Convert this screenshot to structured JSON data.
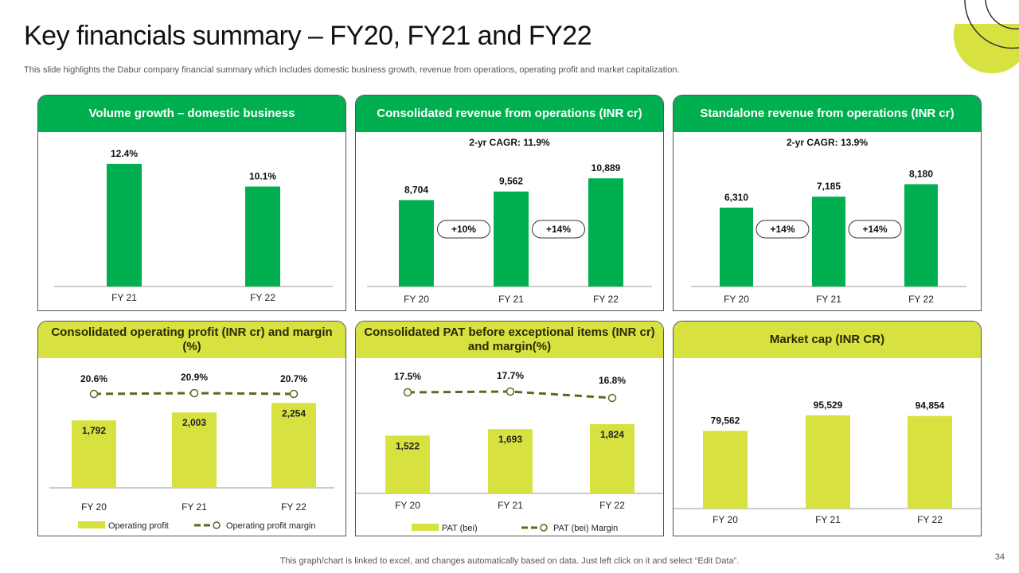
{
  "slide": {
    "title": "Key financials summary – FY20, FY21 and FY22",
    "subtitle": "This slide highlights the Dabur company financial summary which includes domestic business growth, revenue from operations, operating profit and market capitalization.",
    "footer": "This graph/chart is linked to excel,  and changes automatically based on data. Just left click on it and select “Edit Data”.",
    "page_number": "34"
  },
  "colors": {
    "green": "#00b050",
    "lime": "#d7e241",
    "olive": "#5a6b1f"
  },
  "chart_data": [
    {
      "type": "bar",
      "title": "Volume growth – domestic business",
      "categories": [
        "FY 21",
        "FY 22"
      ],
      "values": [
        12.4,
        10.1
      ],
      "value_labels": [
        "12.4%",
        "10.1%"
      ],
      "ylim": [
        0,
        14
      ],
      "color": "#00b050"
    },
    {
      "type": "bar",
      "title": "Consolidated revenue from operations (INR cr)",
      "subtitle": "2-yr CAGR: 11.9%",
      "categories": [
        "FY 20",
        "FY 21",
        "FY 22"
      ],
      "values": [
        8704,
        9562,
        10889
      ],
      "value_labels": [
        "8,704",
        "9,562",
        "10,889"
      ],
      "growth_labels": [
        "+10%",
        "+14%"
      ],
      "ylim": [
        0,
        12500
      ],
      "color": "#00b050"
    },
    {
      "type": "bar",
      "title": "Standalone revenue from operations (INR cr)",
      "subtitle": "2-yr CAGR: 13.9%",
      "categories": [
        "FY 20",
        "FY 21",
        "FY 22"
      ],
      "values": [
        6310,
        7185,
        8180
      ],
      "value_labels": [
        "6,310",
        "7,185",
        "8,180"
      ],
      "growth_labels": [
        "+14%",
        "+14%"
      ],
      "ylim": [
        0,
        9800
      ],
      "color": "#00b050"
    },
    {
      "type": "bar",
      "title": "Consolidated operating profit (INR cr) and margin (%)",
      "categories": [
        "FY 20",
        "FY 21",
        "FY 22"
      ],
      "series": [
        {
          "name": "Operating profit",
          "values": [
            1792,
            2003,
            2254
          ],
          "value_labels": [
            "1,792",
            "2,003",
            "2,254"
          ]
        },
        {
          "name": "Operating profit margin",
          "values": [
            20.6,
            20.9,
            20.7
          ],
          "value_labels": [
            "20.6%",
            "20.9%",
            "20.7%"
          ]
        }
      ],
      "legend": "bottom",
      "ylim": [
        0,
        2600
      ],
      "color": "#d7e241"
    },
    {
      "type": "bar",
      "title": "Consolidated PAT before exceptional items (INR cr) and margin(%)",
      "categories": [
        "FY 20",
        "FY 21",
        "FY 22"
      ],
      "series": [
        {
          "name": "PAT (bei)",
          "values": [
            1522,
            1693,
            1824
          ],
          "value_labels": [
            "1,522",
            "1,693",
            "1,824"
          ]
        },
        {
          "name": "PAT (bei) Margin",
          "values": [
            17.5,
            17.7,
            16.8
          ],
          "value_labels": [
            "17.5%",
            "17.7%",
            "16.8%"
          ]
        }
      ],
      "legend": "bottom",
      "ylim": [
        0,
        2200
      ],
      "color": "#d7e241"
    },
    {
      "type": "bar",
      "title": "Market cap (INR CR)",
      "categories": [
        "FY 20",
        "FY 21",
        "FY 22"
      ],
      "values": [
        79562,
        95529,
        94854
      ],
      "value_labels": [
        "79,562",
        "95,529",
        "94,854"
      ],
      "ylim": [
        0,
        115000
      ],
      "color": "#d7e241"
    }
  ]
}
